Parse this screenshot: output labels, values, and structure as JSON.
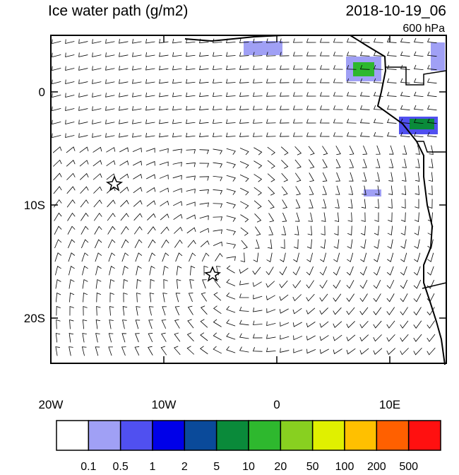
{
  "title": "Ice water path (g/m2)",
  "datetime": "2018-10-19_06",
  "level": "600 hPa",
  "map": {
    "xlim": [
      -20,
      15
    ],
    "ylim": [
      -24,
      5
    ],
    "xticks": [
      {
        "value": -20,
        "label": "20W"
      },
      {
        "value": -10,
        "label": "10W"
      },
      {
        "value": 0,
        "label": "0"
      },
      {
        "value": 10,
        "label": "10E"
      }
    ],
    "yticks": [
      {
        "value": 0,
        "label": "0"
      },
      {
        "value": -10,
        "label": "10S"
      },
      {
        "value": -20,
        "label": "20S"
      }
    ]
  },
  "colorbar": {
    "levels": [
      0.1,
      0.5,
      1,
      2,
      5,
      10,
      20,
      50,
      100,
      200,
      500
    ],
    "colors": [
      "#ffffff",
      "#a0a0f5",
      "#5050f0",
      "#0000e8",
      "#0a4a9a",
      "#0a8a3a",
      "#2eb82e",
      "#88d020",
      "#e0f000",
      "#ffc000",
      "#ff6000",
      "#ff1010"
    ]
  }
}
